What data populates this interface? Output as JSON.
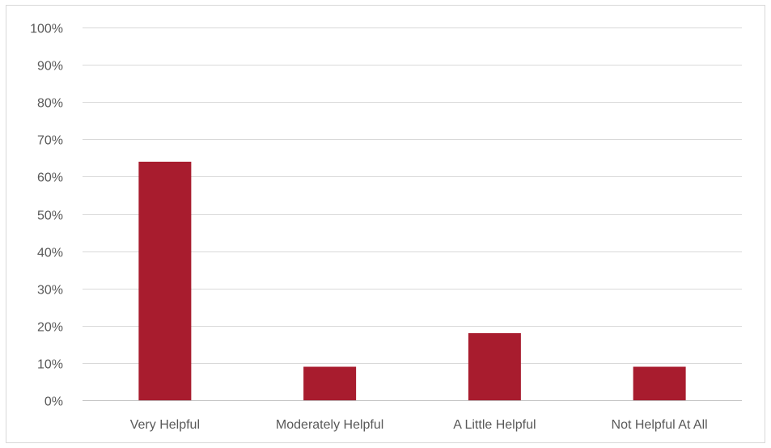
{
  "chart_data": {
    "type": "bar",
    "title": "",
    "xlabel": "",
    "ylabel": "",
    "categories": [
      "Very Helpful",
      "Moderately Helpful",
      "A Little Helpful",
      "Not Helpful At All"
    ],
    "values": [
      64,
      9,
      18,
      9
    ],
    "ylim": [
      0,
      100
    ],
    "yticks": [
      0,
      10,
      20,
      30,
      40,
      50,
      60,
      70,
      80,
      90,
      100
    ],
    "ytick_labels": [
      "0%",
      "10%",
      "20%",
      "30%",
      "40%",
      "50%",
      "60%",
      "70%",
      "80%",
      "90%",
      "100%"
    ],
    "grid": true,
    "legend": "none",
    "bar_color": "#a81c2e",
    "grid_color": "#d9d9d9",
    "label_color": "#595959"
  }
}
